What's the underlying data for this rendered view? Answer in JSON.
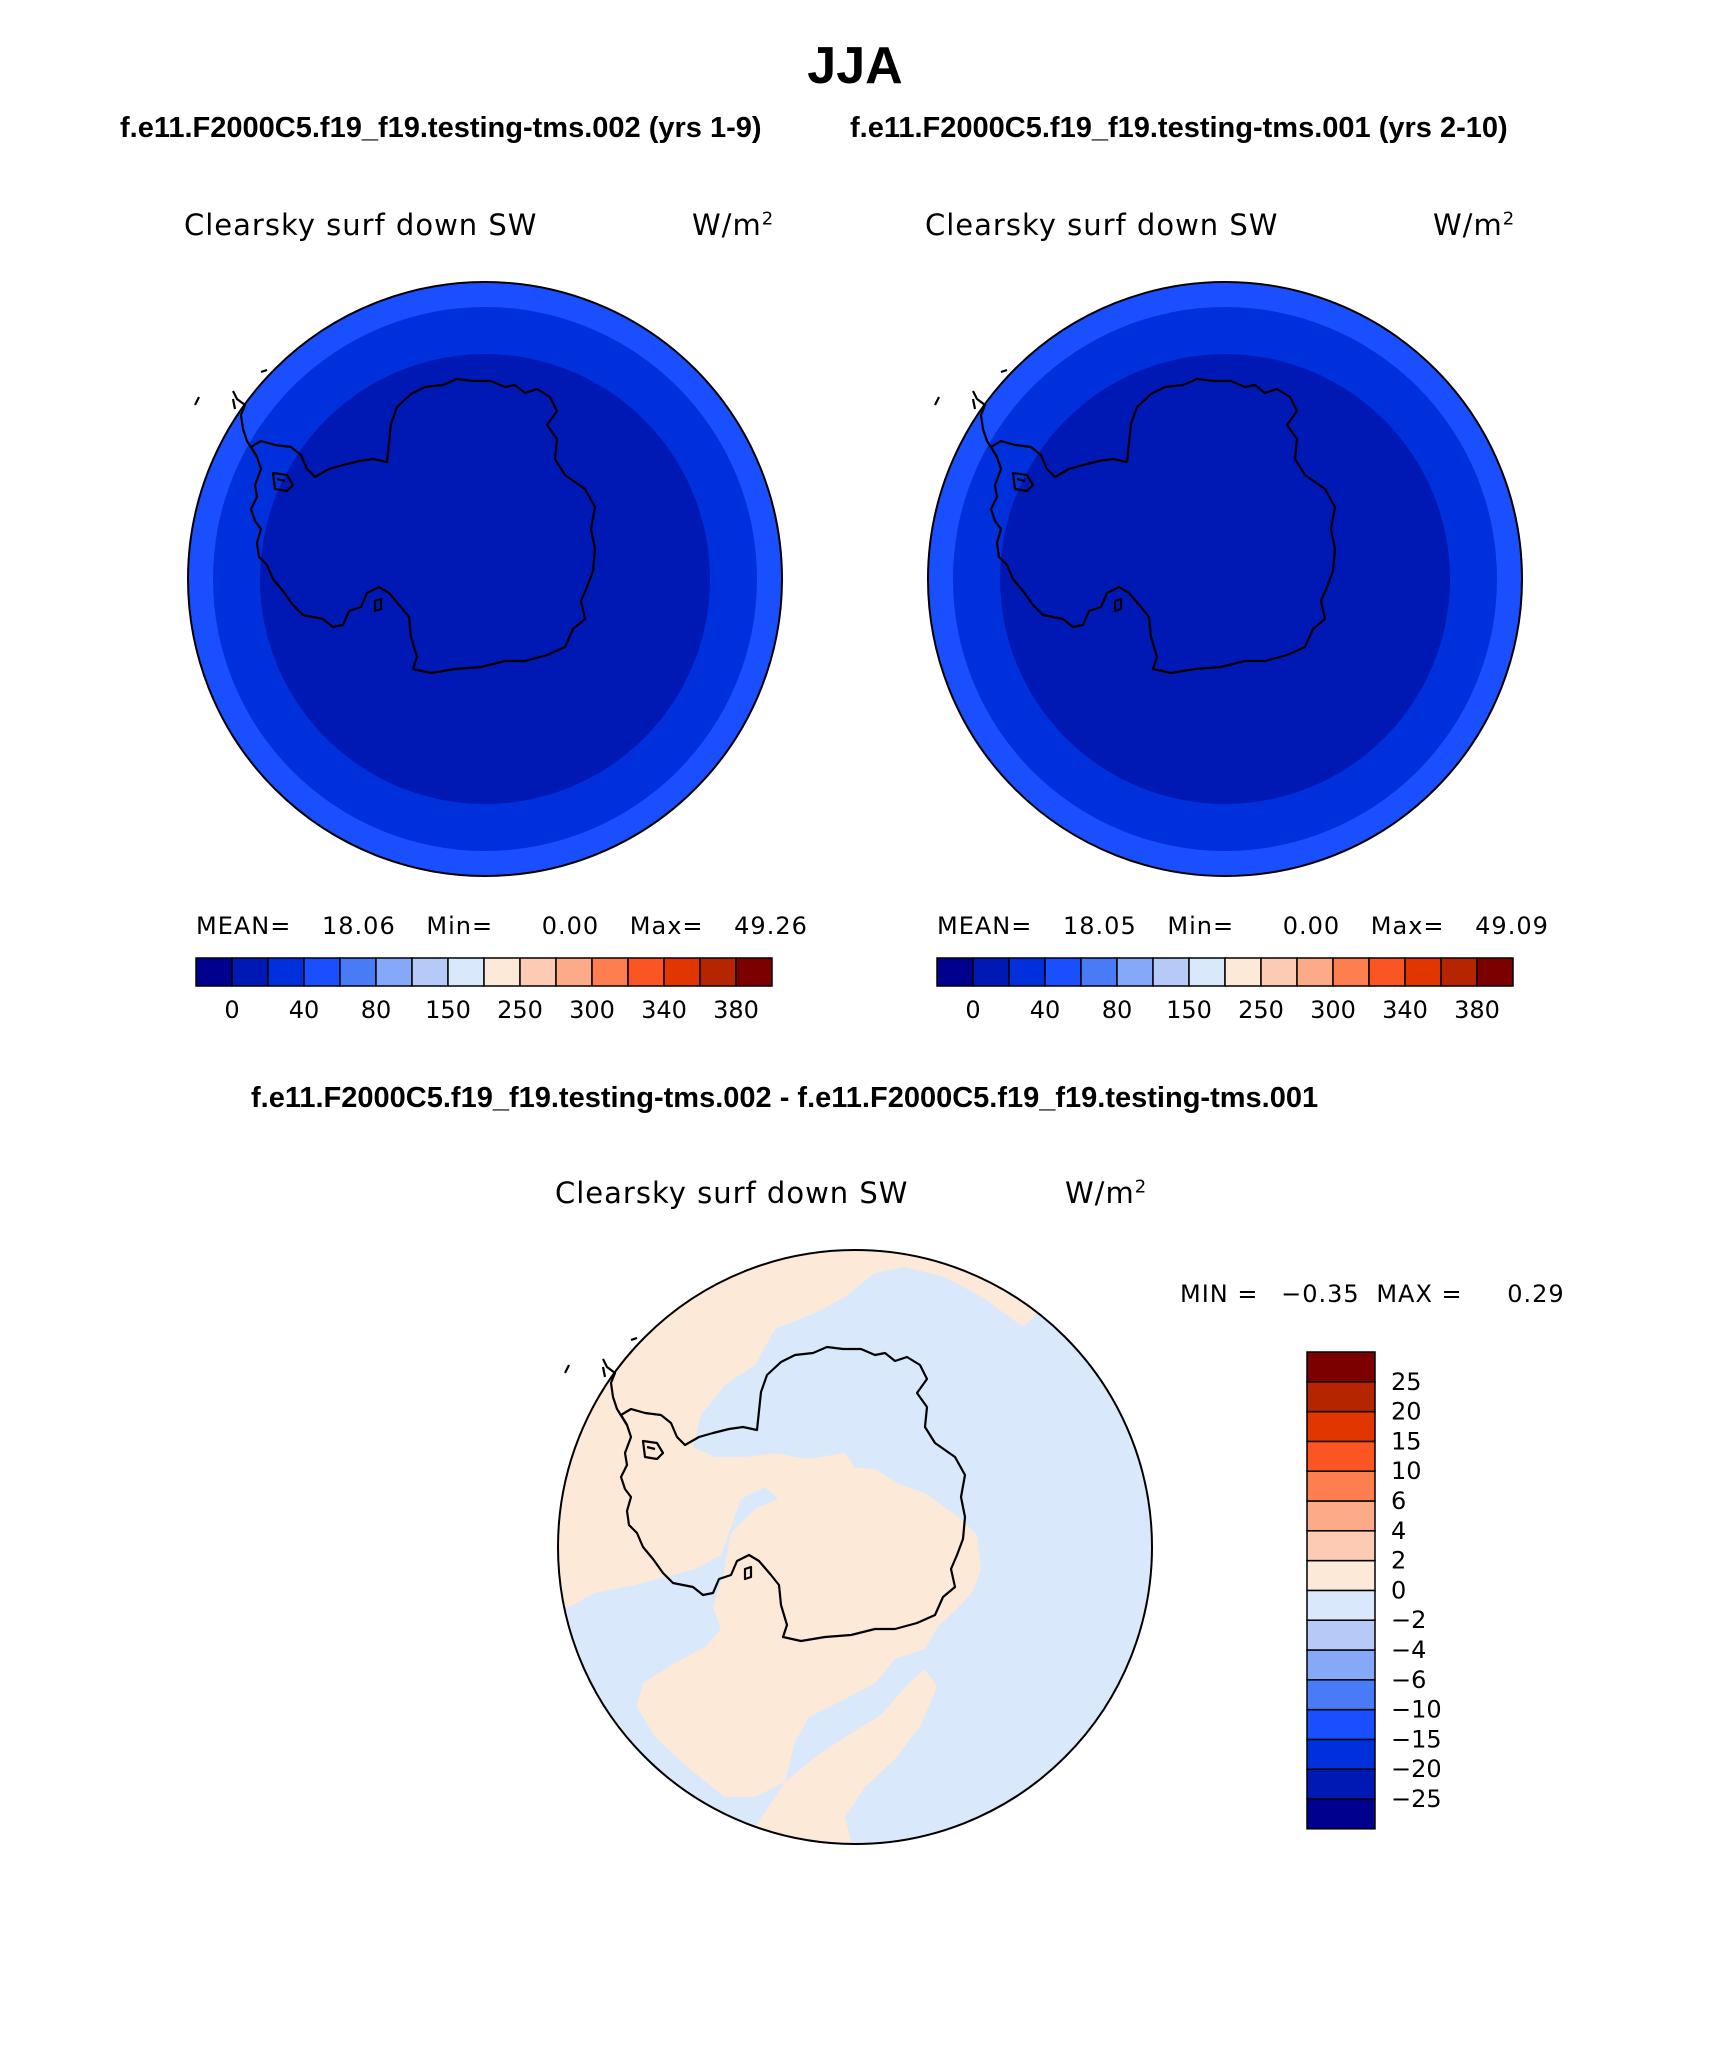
{
  "page": {
    "season_title": "JJA",
    "case_label_left": "f.e11.F2000C5.f19_f19.testing-tms.002 (yrs 1-9)",
    "case_label_right": "f.e11.F2000C5.f19_f19.testing-tms.001 (yrs 2-10)",
    "diff_title": "f.e11.F2000C5.f19_f19.testing-tms.002 - f.e11.F2000C5.f19_f19.testing-tms.001"
  },
  "panels": [
    {
      "variable": "Clearsky surf down SW",
      "units_base": "W/m",
      "units_exp": "2",
      "stats": {
        "mean_label": "MEAN=",
        "mean": "18.06",
        "min_label": "Min=",
        "min": "0.00",
        "max_label": "Max=",
        "max": "49.26"
      }
    },
    {
      "variable": "Clearsky surf down SW",
      "units_base": "W/m",
      "units_exp": "2",
      "stats": {
        "mean_label": "MEAN=",
        "mean": "18.05",
        "min_label": "Min=",
        "min": "0.00",
        "max_label": "Max=",
        "max": "49.09"
      }
    }
  ],
  "diff_panel": {
    "variable": "Clearsky surf down SW",
    "units_base": "W/m",
    "units_exp": "2",
    "min_label": "MIN =",
    "min": "−0.35",
    "max_label": "MAX =",
    "max": "0.29"
  },
  "colorbar_abs": {
    "colors": [
      "#00008f",
      "#0018b4",
      "#0030dc",
      "#1a4fff",
      "#4a7bf7",
      "#85a8f8",
      "#b5caf6",
      "#d9e8fb",
      "#fde9d8",
      "#fdcbb4",
      "#fdaa88",
      "#fd7f50",
      "#fb5523",
      "#e23600",
      "#b52500",
      "#7d0000"
    ],
    "labels": [
      "0",
      "40",
      "80",
      "150",
      "250",
      "300",
      "340",
      "380"
    ]
  },
  "colorbar_diff": {
    "colors": [
      "#00008f",
      "#0018b4",
      "#0030dc",
      "#1a4fff",
      "#4a7bf7",
      "#85a8f8",
      "#b5caf6",
      "#d9e8fb",
      "#fde9d8",
      "#fdcbb4",
      "#fdaa88",
      "#fd7f50",
      "#fb5523",
      "#e23600",
      "#b52500",
      "#7d0000"
    ],
    "labels": [
      "25",
      "20",
      "15",
      "10",
      "6",
      "4",
      "2",
      "0",
      "−2",
      "−4",
      "−6",
      "−10",
      "−15",
      "−20",
      "−25"
    ]
  },
  "map_colors": {
    "outer_ring": "#1a4fff",
    "middle_ring": "#0030dc",
    "inner_disk": "#0018b4",
    "diff_positive": "#fde9d8",
    "diff_negative": "#d9e8fb",
    "coastline": "#000000"
  }
}
